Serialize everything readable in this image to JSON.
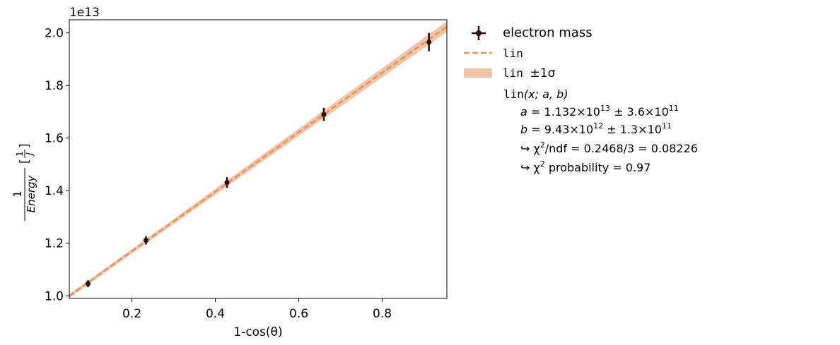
{
  "chart_data": {
    "type": "scatter",
    "xlabel": "1-cos(θ)",
    "ylabel_numerator": "1",
    "ylabel_denominator": "Energy",
    "ylabel_unit_num": "1",
    "ylabel_unit_den": "J",
    "offset_text": "1e13",
    "xlim": [
      0.05,
      0.955
    ],
    "ylim": [
      0.99,
      2.05
    ],
    "y_scale_factor": "1e13",
    "x_ticks": [
      0.2,
      0.4,
      0.6,
      0.8
    ],
    "x_tick_labels": [
      "0.2",
      "0.4",
      "0.6",
      "0.8"
    ],
    "y_ticks": [
      1.0,
      1.2,
      1.4,
      1.6,
      1.8,
      2.0
    ],
    "y_tick_labels": [
      "1.0",
      "1.2",
      "1.4",
      "1.6",
      "1.8",
      "2.0"
    ],
    "series": [
      {
        "name": "electron mass",
        "kind": "errorbar",
        "color": "#2d0a0a",
        "points": [
          {
            "x": 0.095,
            "y": 1.046,
            "yerr": 0.013,
            "xerr": 0.003
          },
          {
            "x": 0.234,
            "y": 1.211,
            "yerr": 0.016,
            "xerr": 0.003
          },
          {
            "x": 0.428,
            "y": 1.431,
            "yerr": 0.02,
            "xerr": 0.003
          },
          {
            "x": 0.66,
            "y": 1.69,
            "yerr": 0.025,
            "xerr": 0.003
          },
          {
            "x": 0.912,
            "y": 1.965,
            "yerr": 0.035,
            "xerr": 0.003
          }
        ]
      },
      {
        "name": "lin",
        "kind": "fit-line",
        "color": "#e8915a",
        "slope": 1.132,
        "intercept": 0.943,
        "slope_err": 0.036,
        "intercept_err": 0.013
      }
    ],
    "legend": {
      "placement": "outside-right",
      "entries": [
        "electron mass",
        "lin",
        "lin ±1σ"
      ],
      "band_label_prefix": "lin ",
      "band_label_suffix": "±1σ"
    },
    "fit_info": {
      "func_name": "lin",
      "func_args": "(x; a, b)",
      "a_label": "a =",
      "a_value": "1.132×10",
      "a_exp": "13",
      "a_err": "± 3.6×10",
      "a_err_exp": "11",
      "b_label": "b =",
      "b_value": "9.43×10",
      "b_exp": "12",
      "b_err": "± 1.3×10",
      "b_err_exp": "11",
      "chi2_prefix": "↪ χ",
      "chi2_sup": "2",
      "chi2_ndf": "/ndf = 0.2468/3 = 0.08226",
      "prob_prefix": "↪ χ",
      "prob_sup": "2",
      "prob_text": " probability = 0.97"
    },
    "colors": {
      "data": "#2d0a0a",
      "fit_line": "#e8915a",
      "band": "#f0c4a6"
    },
    "grid": false
  }
}
